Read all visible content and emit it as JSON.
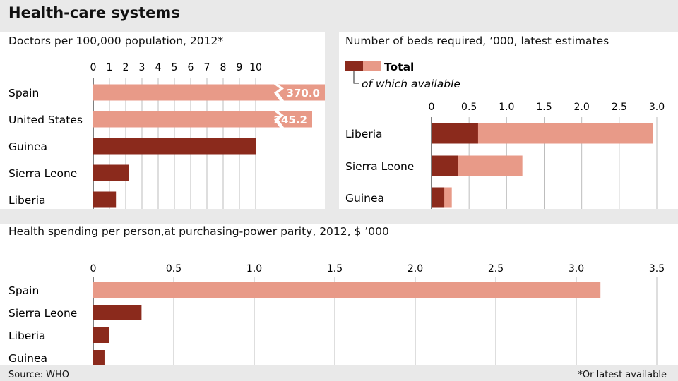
{
  "title": "Health-care systems",
  "source": "Source: WHO",
  "footnote": "*Or latest available",
  "colors": {
    "total": "#e89a88",
    "available": "#8b2a1c",
    "grid": "#bdbdbd",
    "axis": "#555555"
  },
  "chart_data": [
    {
      "type": "bar",
      "title": "Doctors per 100,000 population, 2012*",
      "categories": [
        "Spain",
        "United States",
        "Guinea",
        "Sierra Leone",
        "Liberia"
      ],
      "values": [
        370.0,
        245.2,
        10,
        2.2,
        1.4
      ],
      "value_labels": [
        "370.0",
        "245.2",
        "",
        "",
        ""
      ],
      "bar_colors": [
        "total",
        "total",
        "available",
        "available",
        "available"
      ],
      "xticks": [
        "0",
        "1",
        "2",
        "3",
        "4",
        "5",
        "6",
        "7",
        "8",
        "9",
        "10"
      ],
      "xlim": [
        0,
        10
      ],
      "axis_break": true,
      "grid": true
    },
    {
      "type": "bar",
      "title": "Number of beds required, ’000, latest estimates",
      "legend": {
        "total": "Total",
        "available": "of which available"
      },
      "categories": [
        "Liberia",
        "Sierra Leone",
        "Guinea"
      ],
      "series": [
        {
          "name": "Total",
          "values": [
            2.95,
            1.21,
            0.27
          ]
        },
        {
          "name": "of which available",
          "values": [
            0.62,
            0.35,
            0.17
          ]
        }
      ],
      "xticks": [
        "0",
        "0.5",
        "1.0",
        "1.5",
        "2.0",
        "2.5",
        "3.0"
      ],
      "xlim": [
        0,
        3.0
      ],
      "grid": true
    },
    {
      "type": "bar",
      "title": "Health spending per person,at purchasing-power parity, 2012, $ ’000",
      "categories": [
        "Spain",
        "Sierra Leone",
        "Liberia",
        "Guinea"
      ],
      "values": [
        3.15,
        0.3,
        0.1,
        0.07
      ],
      "bar_colors": [
        "total",
        "available",
        "available",
        "available"
      ],
      "xticks": [
        "0",
        "0.5",
        "1.0",
        "1.5",
        "2.0",
        "2.5",
        "3.0",
        "3.5"
      ],
      "xlim": [
        0,
        3.5
      ],
      "grid": true
    }
  ]
}
